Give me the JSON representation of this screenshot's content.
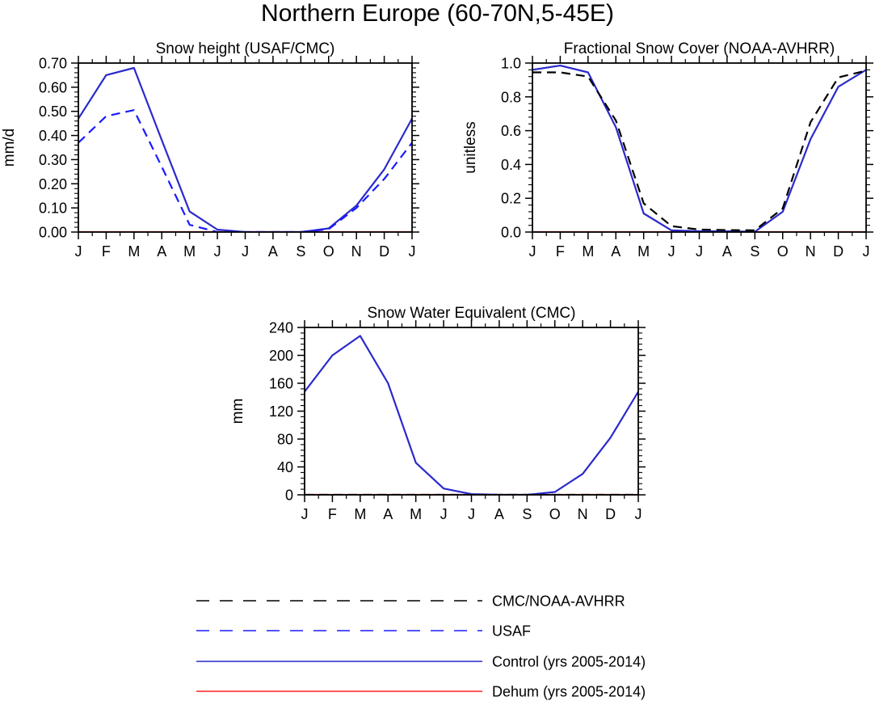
{
  "figure_title": "Northern Europe (60-70N,5-45E)",
  "colors": {
    "obs": "#000000",
    "usaf": "#1a1aff",
    "control": "#2a2acc",
    "dehum": "#ff2020"
  },
  "legend": [
    {
      "label": "CMC/NOAA-AVHRR",
      "color": "#000000",
      "dash": "dashed"
    },
    {
      "label": "USAF",
      "color": "#1a1aff",
      "dash": "dashed"
    },
    {
      "label": "Control (yrs 2005-2014)",
      "color": "#2a2acc",
      "dash": "solid"
    },
    {
      "label": "Dehum (yrs 2005-2014)",
      "color": "#ff2020",
      "dash": "solid"
    }
  ],
  "chart_data": [
    {
      "type": "line",
      "title": "Snow height (USAF/CMC)",
      "ylabel": "mm/d",
      "xlabel": "",
      "categories": [
        "J",
        "F",
        "M",
        "A",
        "M",
        "J",
        "J",
        "A",
        "S",
        "O",
        "N",
        "D",
        "J"
      ],
      "ylim": [
        0,
        0.7
      ],
      "yticks": [
        0,
        0.1,
        0.2,
        0.3,
        0.4,
        0.5,
        0.6,
        0.7
      ],
      "ytick_labels": [
        "0.00",
        "0.10",
        "0.20",
        "0.30",
        "0.40",
        "0.50",
        "0.60",
        "0.70"
      ],
      "grid": false,
      "series": [
        {
          "name": "Control (yrs 2005-2014)",
          "style": "solid",
          "color_key": "control",
          "values": [
            0.47,
            0.65,
            0.68,
            0.38,
            0.085,
            0.01,
            0.0,
            0.0,
            0.0,
            0.015,
            0.11,
            0.26,
            0.47
          ]
        },
        {
          "name": "USAF",
          "style": "dashed",
          "color_key": "usaf",
          "values": [
            0.37,
            0.48,
            0.505,
            0.27,
            0.03,
            0.0,
            0.0,
            0.0,
            0.0,
            0.012,
            0.1,
            0.22,
            0.37
          ]
        },
        {
          "name": "Dehum (yrs 2005-2014)",
          "style": "solid",
          "color_key": "dehum",
          "values": [
            0,
            0,
            0,
            0,
            0,
            0,
            0,
            0,
            0,
            0,
            0,
            0,
            0
          ]
        }
      ]
    },
    {
      "type": "line",
      "title": "Fractional Snow Cover (NOAA-AVHRR)",
      "ylabel": "unitless",
      "xlabel": "",
      "categories": [
        "J",
        "F",
        "M",
        "A",
        "M",
        "J",
        "J",
        "A",
        "S",
        "O",
        "N",
        "D",
        "J"
      ],
      "ylim": [
        0,
        1.0
      ],
      "yticks": [
        0,
        0.2,
        0.4,
        0.6,
        0.8,
        1.0
      ],
      "ytick_labels": [
        "0.0",
        "0.2",
        "0.4",
        "0.6",
        "0.8",
        "1.0"
      ],
      "grid": false,
      "series": [
        {
          "name": "Control (yrs 2005-2014)",
          "style": "solid",
          "color_key": "control",
          "values": [
            0.96,
            0.985,
            0.945,
            0.62,
            0.11,
            0.01,
            0.005,
            0.005,
            0.002,
            0.12,
            0.55,
            0.86,
            0.96
          ]
        },
        {
          "name": "CMC/NOAA-AVHRR",
          "style": "dashed",
          "color_key": "obs",
          "values": [
            0.945,
            0.945,
            0.92,
            0.66,
            0.17,
            0.035,
            0.015,
            0.012,
            0.01,
            0.14,
            0.65,
            0.915,
            0.955
          ]
        },
        {
          "name": "Dehum (yrs 2005-2014)",
          "style": "solid",
          "color_key": "dehum",
          "values": [
            0,
            0,
            0,
            0,
            0,
            0,
            0,
            0,
            0,
            0,
            0,
            0,
            0
          ]
        }
      ]
    },
    {
      "type": "line",
      "title": "Snow Water Equivalent (CMC)",
      "ylabel": "mm",
      "xlabel": "",
      "categories": [
        "J",
        "F",
        "M",
        "A",
        "M",
        "J",
        "J",
        "A",
        "S",
        "O",
        "N",
        "D",
        "J"
      ],
      "ylim": [
        0,
        240
      ],
      "yticks": [
        0,
        40,
        80,
        120,
        160,
        200,
        240
      ],
      "ytick_labels": [
        "0",
        "40",
        "80",
        "120",
        "160",
        "200",
        "240"
      ],
      "grid": false,
      "series": [
        {
          "name": "Control (yrs 2005-2014)",
          "style": "solid",
          "color_key": "control",
          "values": [
            148,
            200,
            228,
            160,
            46,
            9,
            1,
            0,
            0,
            4,
            30,
            82,
            148
          ]
        },
        {
          "name": "Dehum (yrs 2005-2014)",
          "style": "solid",
          "color_key": "dehum",
          "values": [
            0,
            0,
            0,
            0,
            0,
            0,
            0,
            0,
            0,
            0,
            0,
            0,
            0
          ]
        },
        {
          "name": "CMC/NOAA-AVHRR",
          "style": "dashed",
          "color_key": "obs",
          "values": [
            0,
            0,
            0,
            0,
            0,
            0,
            0,
            0,
            0,
            0,
            0,
            0,
            0
          ]
        }
      ]
    }
  ]
}
